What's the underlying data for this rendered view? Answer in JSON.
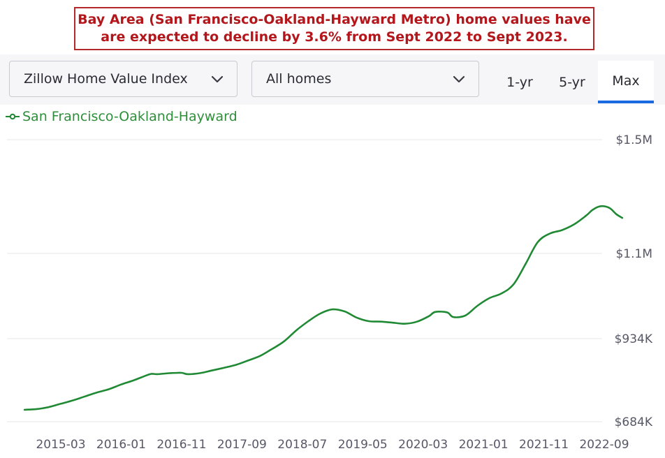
{
  "banner": {
    "line1": "Bay Area (San Francisco-Oakland-Hayward Metro) home values have",
    "line2": "are expected to decline by 3.6% from Sept 2022 to Sept 2023."
  },
  "controls": {
    "metric_select": "Zillow Home Value Index",
    "home_type_select": "All homes",
    "range_tabs": [
      "1-yr",
      "5-yr",
      "Max"
    ],
    "active_tab": "Max",
    "accent_color": "#1a6be2"
  },
  "chart_data": {
    "type": "line",
    "legend_position": "top-left",
    "grid": true,
    "series": [
      {
        "name": "San Francisco-Oakland-Hayward",
        "color": "#1f8a33",
        "points": [
          [
            "2014-09",
            720000
          ],
          [
            "2014-11",
            722000
          ],
          [
            "2015-01",
            728000
          ],
          [
            "2015-03",
            738000
          ],
          [
            "2015-05",
            748000
          ],
          [
            "2015-07",
            760000
          ],
          [
            "2015-09",
            772000
          ],
          [
            "2015-11",
            782000
          ],
          [
            "2016-01",
            796000
          ],
          [
            "2016-03",
            808000
          ],
          [
            "2016-05",
            822000
          ],
          [
            "2016-06",
            828000
          ],
          [
            "2016-07",
            827000
          ],
          [
            "2016-09",
            830000
          ],
          [
            "2016-11",
            831000
          ],
          [
            "2016-12",
            827000
          ],
          [
            "2017-02",
            830000
          ],
          [
            "2017-04",
            838000
          ],
          [
            "2017-06",
            846000
          ],
          [
            "2017-08",
            855000
          ],
          [
            "2017-10",
            868000
          ],
          [
            "2017-12",
            882000
          ],
          [
            "2018-02",
            903000
          ],
          [
            "2018-04",
            926000
          ],
          [
            "2018-06",
            950000
          ],
          [
            "2018-08",
            968000
          ],
          [
            "2018-10",
            983000
          ],
          [
            "2018-12",
            991000
          ],
          [
            "2019-02",
            987000
          ],
          [
            "2019-04",
            975000
          ],
          [
            "2019-06",
            968000
          ],
          [
            "2019-08",
            967000
          ],
          [
            "2019-10",
            965000
          ],
          [
            "2019-12",
            963000
          ],
          [
            "2020-02",
            967000
          ],
          [
            "2020-04",
            978000
          ],
          [
            "2020-05",
            986000
          ],
          [
            "2020-07",
            985000
          ],
          [
            "2020-08",
            976000
          ],
          [
            "2020-10",
            979000
          ],
          [
            "2020-12",
            998000
          ],
          [
            "2021-02",
            1013000
          ],
          [
            "2021-04",
            1022000
          ],
          [
            "2021-06",
            1040000
          ],
          [
            "2021-08",
            1080000
          ],
          [
            "2021-10",
            1140000
          ],
          [
            "2021-12",
            1170000
          ],
          [
            "2022-02",
            1182000
          ],
          [
            "2022-04",
            1202000
          ],
          [
            "2022-06",
            1233000
          ],
          [
            "2022-07",
            1252000
          ],
          [
            "2022-08",
            1264000
          ],
          [
            "2022-09",
            1266000
          ],
          [
            "2022-10",
            1258000
          ],
          [
            "2022-11",
            1238000
          ],
          [
            "2022-12",
            1225000
          ]
        ]
      }
    ],
    "y_ticks": [
      {
        "value": 684000,
        "label": "$684K"
      },
      {
        "value": 934000,
        "label": "$934K"
      },
      {
        "value": 1100000,
        "label": "$1.1M"
      },
      {
        "value": 1500000,
        "label": "$1.5M"
      }
    ],
    "x_ticks": [
      "2015-03",
      "2016-01",
      "2016-11",
      "2017-09",
      "2018-07",
      "2019-05",
      "2020-03",
      "2021-01",
      "2021-11",
      "2022-09"
    ]
  }
}
